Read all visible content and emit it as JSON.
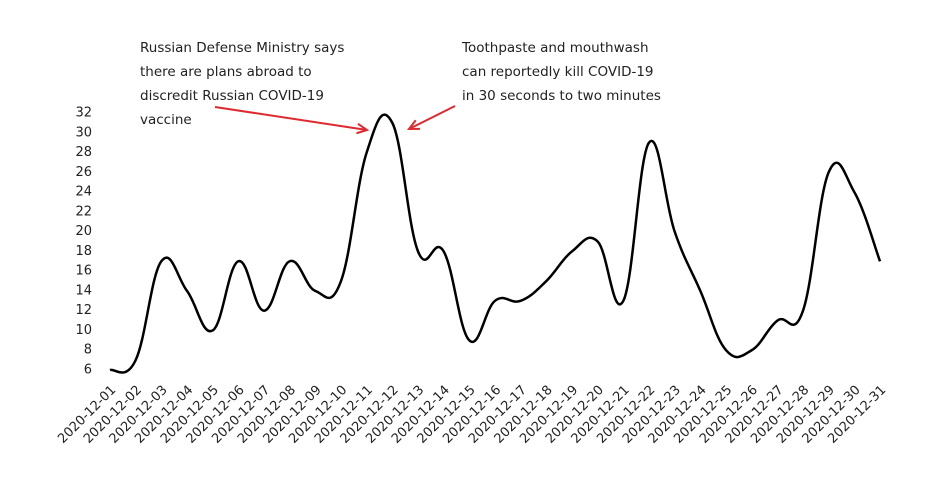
{
  "chart_data": {
    "type": "line",
    "categories": [
      "2020-12-01",
      "2020-12-02",
      "2020-12-03",
      "2020-12-04",
      "2020-12-05",
      "2020-12-06",
      "2020-12-07",
      "2020-12-08",
      "2020-12-09",
      "2020-12-10",
      "2020-12-11",
      "2020-12-12",
      "2020-12-13",
      "2020-12-14",
      "2020-12-15",
      "2020-12-16",
      "2020-12-17",
      "2020-12-18",
      "2020-12-19",
      "2020-12-20",
      "2020-12-21",
      "2020-12-22",
      "2020-12-23",
      "2020-12-24",
      "2020-12-25",
      "2020-12-26",
      "2020-12-27",
      "2020-12-28",
      "2020-12-29",
      "2020-12-30",
      "2020-12-31"
    ],
    "values": [
      6,
      7,
      17,
      14,
      10,
      17,
      12,
      17,
      14,
      15,
      28,
      31,
      18,
      18,
      9,
      13,
      13,
      15,
      18,
      19,
      13,
      29,
      20,
      14,
      8,
      8,
      11,
      12,
      26,
      24,
      17
    ],
    "color": "#000000",
    "ylim": [
      6,
      32
    ],
    "yticks": [
      6,
      8,
      10,
      12,
      14,
      16,
      18,
      20,
      22,
      24,
      26,
      28,
      30,
      32
    ],
    "annotations": [
      {
        "lines": [
          "Russian Defense Ministry says",
          "there are plans abroad to",
          "discredit Russian COVID-19",
          "vaccine"
        ],
        "arrow_color": "#e0292f"
      },
      {
        "lines": [
          "Toothpaste and mouthwash",
          "can reportedly kill COVID-19",
          "in 30 seconds to two minutes"
        ],
        "arrow_color": "#e0292f"
      }
    ]
  }
}
